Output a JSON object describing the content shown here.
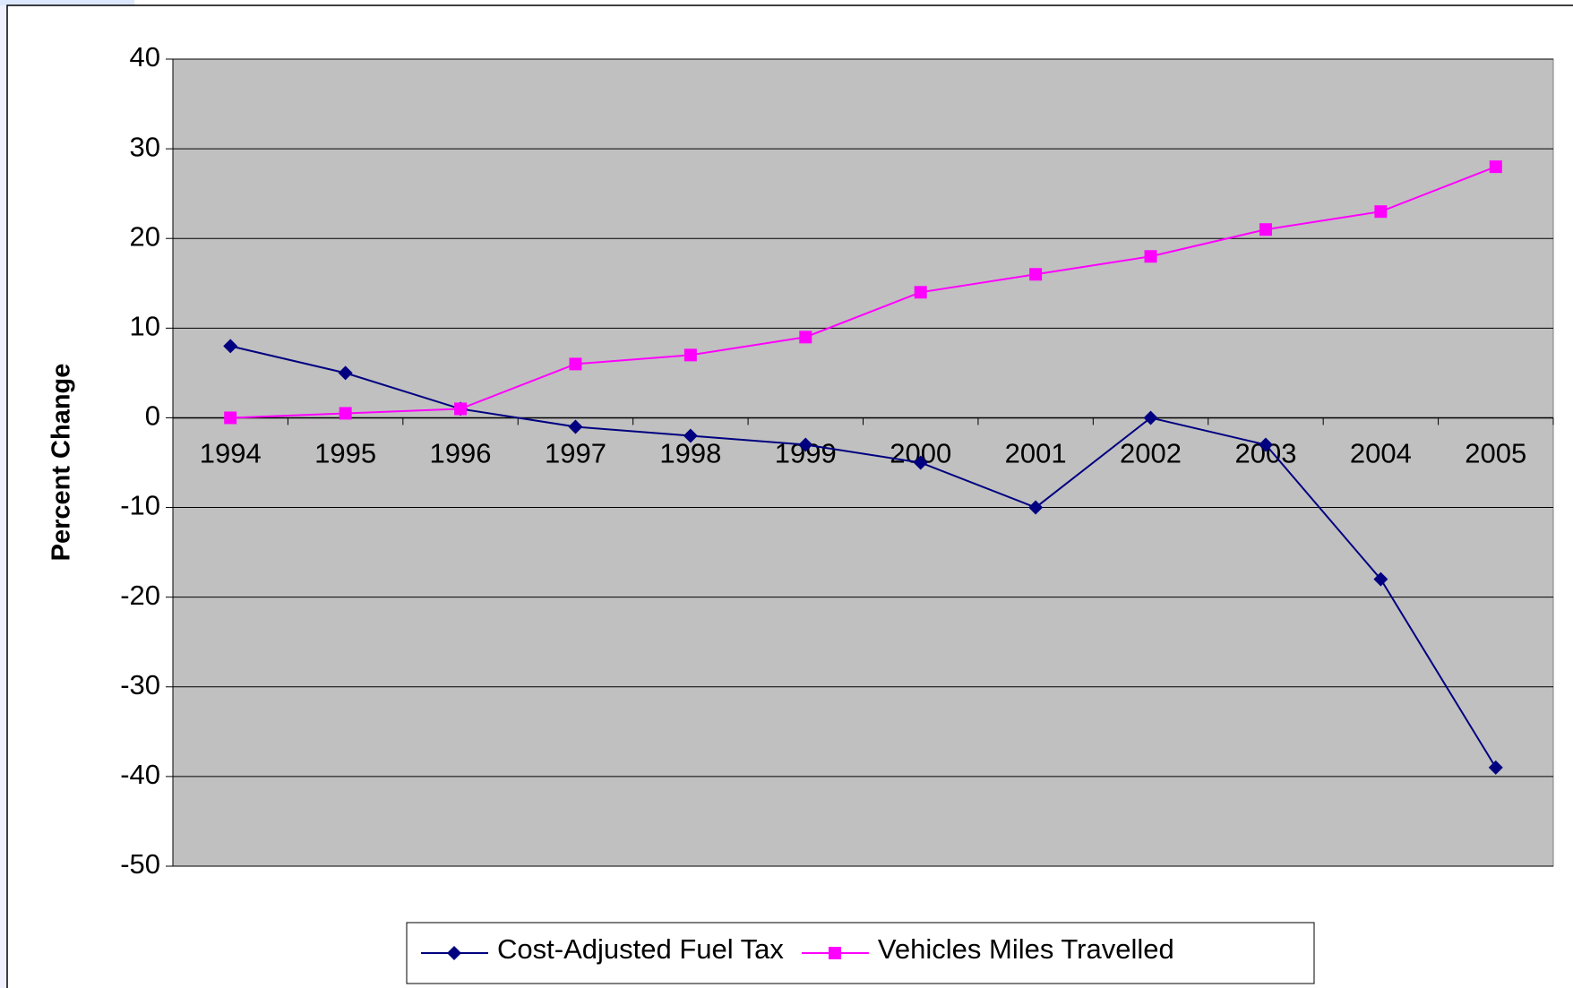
{
  "chart_data": {
    "type": "line",
    "categories": [
      "1994",
      "1995",
      "1996",
      "1997",
      "1998",
      "1999",
      "2000",
      "2001",
      "2002",
      "2003",
      "2004",
      "2005"
    ],
    "series": [
      {
        "name": "Cost-Adjusted Fuel Tax",
        "color": "#000080",
        "marker": "diamond",
        "values": [
          8,
          5,
          1,
          -1,
          -2,
          -3,
          -5,
          -10,
          0,
          -3,
          -18,
          -39
        ]
      },
      {
        "name": "Vehicles Miles Travelled",
        "color": "#ff00ff",
        "marker": "square",
        "values": [
          0,
          0.5,
          1,
          6,
          7,
          9,
          14,
          16,
          18,
          21,
          23,
          28
        ]
      }
    ],
    "y_label": "Percent Change",
    "ylim": [
      -50,
      40
    ],
    "yticks": [
      -50,
      -40,
      -30,
      -20,
      -10,
      0,
      10,
      20,
      30,
      40
    ],
    "grid": true,
    "legend": "bottom"
  }
}
